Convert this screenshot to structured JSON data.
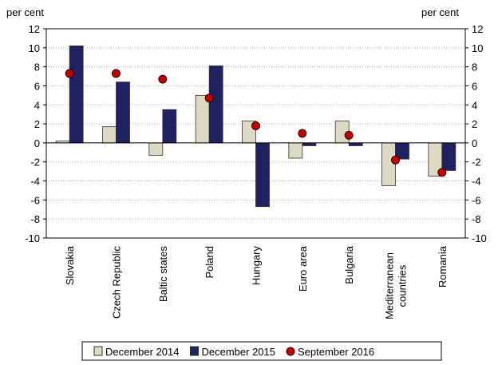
{
  "chart_data": {
    "type": "bar",
    "y_label_left": "per cent",
    "y_label_right": "per cent",
    "categories": [
      "Slovakia",
      "Czech Republic",
      "Baltic states",
      "Poland",
      "Hungary",
      "Euro area",
      "Bulgaria",
      "Mediterranean countries",
      "Romania"
    ],
    "series": [
      {
        "name": "December 2014",
        "color": "#ddd9c3",
        "kind": "bar",
        "values": [
          0.2,
          1.7,
          -1.3,
          5.0,
          2.3,
          -1.6,
          2.3,
          -4.5,
          -3.5
        ]
      },
      {
        "name": "December 2015",
        "color": "#1f2160",
        "kind": "bar",
        "values": [
          10.2,
          6.4,
          3.5,
          8.1,
          -6.7,
          -0.3,
          -0.3,
          -1.7,
          -2.9
        ]
      },
      {
        "name": "September 2016",
        "color": "#c00000",
        "kind": "dot",
        "values": [
          7.3,
          7.3,
          6.7,
          4.7,
          1.8,
          1.0,
          0.8,
          -1.8,
          -3.1
        ]
      }
    ],
    "ylim": [
      -10,
      12
    ],
    "yticks": [
      -10,
      -8,
      -6,
      -4,
      -2,
      0,
      2,
      4,
      6,
      8,
      10,
      12
    ],
    "y2lim": [
      -10,
      12
    ],
    "y2ticks": [
      -10,
      -8,
      -6,
      -4,
      -2,
      0,
      2,
      4,
      6,
      8,
      10,
      12
    ],
    "grid": true,
    "legend": "bottom"
  }
}
